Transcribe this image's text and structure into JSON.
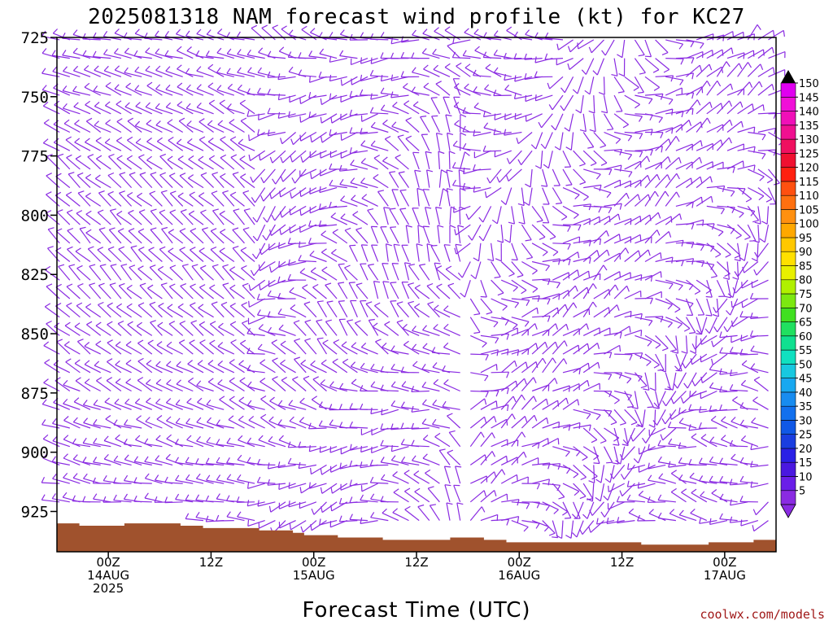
{
  "chart_data": {
    "type": "wind_barb_profile",
    "title": "2025081318 NAM forecast wind profile (kt) for KC27",
    "xlabel": "Forecast Time (UTC)",
    "ylabel": "",
    "units": "kt",
    "y_axis": {
      "ticks": [
        725,
        750,
        775,
        800,
        825,
        850,
        875,
        900,
        925
      ],
      "range": [
        725,
        942
      ],
      "inverted": true
    },
    "x_axis": {
      "ticks": [
        {
          "hour": 6,
          "lines": [
            "00Z",
            "14AUG",
            "2025"
          ]
        },
        {
          "hour": 18,
          "lines": [
            "12Z"
          ]
        },
        {
          "hour": 30,
          "lines": [
            "00Z",
            "15AUG"
          ]
        },
        {
          "hour": 42,
          "lines": [
            "12Z"
          ]
        },
        {
          "hour": 54,
          "lines": [
            "00Z",
            "16AUG"
          ]
        },
        {
          "hour": 66,
          "lines": [
            "12Z"
          ]
        },
        {
          "hour": 78,
          "lines": [
            "00Z",
            "17AUG"
          ]
        }
      ],
      "range": [
        0,
        84
      ],
      "unit": "forecast hours from 2025081318"
    },
    "colorbar": {
      "levels": [
        5,
        10,
        15,
        20,
        25,
        30,
        35,
        40,
        45,
        50,
        55,
        60,
        65,
        70,
        75,
        80,
        85,
        90,
        95,
        100,
        105,
        110,
        115,
        120,
        125,
        130,
        135,
        140,
        145,
        150
      ],
      "colors": [
        "#8a2be2",
        "#6a1ee8",
        "#4a18e0",
        "#2a20e6",
        "#1a3ee0",
        "#1058e6",
        "#1270ee",
        "#188cf0",
        "#18a8f0",
        "#18c8e0",
        "#10e0c0",
        "#10e090",
        "#20e060",
        "#40e020",
        "#7ce810",
        "#b0f000",
        "#e8f000",
        "#ffe000",
        "#ffc800",
        "#ffa800",
        "#ff9010",
        "#ff7010",
        "#ff5010",
        "#ff2010",
        "#f01030",
        "#f01060",
        "#f01090",
        "#f010b8",
        "#f010d8",
        "#e000f0"
      ]
    },
    "terrain": {
      "color": "#a0522d",
      "surface_pressure": [
        930,
        930,
        931,
        931,
        931,
        931,
        930,
        930,
        930,
        930,
        930,
        931,
        931,
        932,
        932,
        932,
        932,
        932,
        933,
        933,
        933,
        934,
        935,
        935,
        935,
        936,
        936,
        936,
        936,
        937,
        937,
        937,
        937,
        937,
        937,
        936,
        936,
        936,
        937,
        937,
        938,
        938,
        938,
        938,
        938,
        938,
        938,
        938,
        938,
        938,
        938,
        938,
        939,
        939,
        939,
        939,
        939,
        939,
        938,
        938,
        938,
        938,
        937,
        937
      ]
    },
    "wind_field_summary": {
      "barb_color": "#8a2be2",
      "speed_range_kt": "≈ 5–10",
      "description": "Light winds (~5-10 kt) throughout the profile; westerly/northwesterly early, shifting to variable and southerly later in the period."
    }
  },
  "credit": "coolwx.com/models",
  "colors": {
    "barb": "#8a2be2",
    "terrain": "#a0522d",
    "credit": "#a01818"
  }
}
